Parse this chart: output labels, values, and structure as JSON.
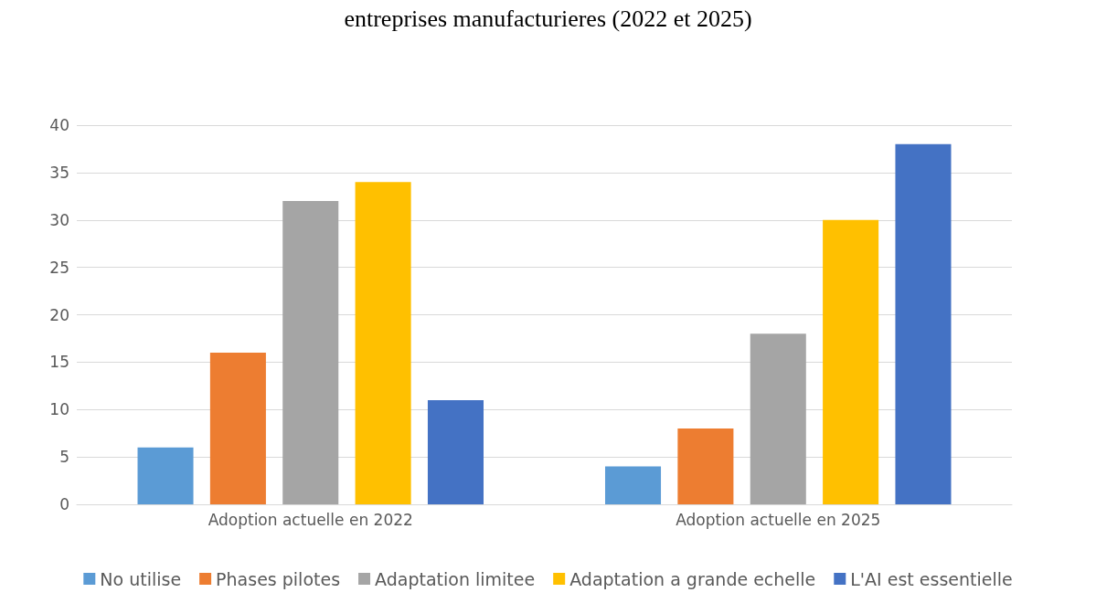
{
  "chart_data": {
    "type": "bar",
    "title": "entreprises manufacturieres (2022 et 2025)",
    "categories": [
      "Adoption actuelle en 2022",
      "Adoption actuelle en 2025"
    ],
    "series": [
      {
        "name": "No utilise",
        "color": "#5b9bd5",
        "values": [
          6,
          4
        ]
      },
      {
        "name": "Phases pilotes",
        "color": "#ed7d31",
        "values": [
          16,
          8
        ]
      },
      {
        "name": "Adaptation limitee",
        "color": "#a5a5a5",
        "values": [
          32,
          18
        ]
      },
      {
        "name": "Adaptation a grande echelle",
        "color": "#ffc000",
        "values": [
          34,
          30
        ]
      },
      {
        "name": "L'AI est essentielle",
        "color": "#4472c4",
        "values": [
          11,
          38
        ]
      }
    ],
    "ylim": [
      0,
      40
    ],
    "yticks": [
      0,
      5,
      10,
      15,
      20,
      25,
      30,
      35,
      40
    ],
    "grid": "y",
    "legend": "bottom"
  }
}
